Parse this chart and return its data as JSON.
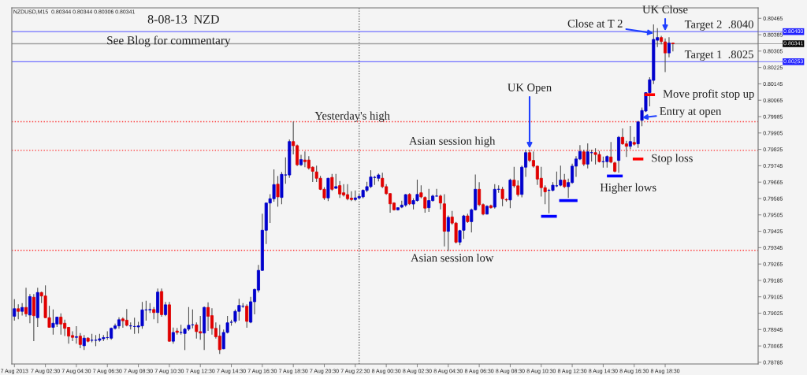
{
  "chart_data": {
    "type": "candlestick",
    "title": "8-08-13  NZD",
    "x": [
      "2013-08-07T00:30",
      "2013-08-07T00:45",
      "2013-08-07T01:00",
      "2013-08-07T01:15",
      "2013-08-07T01:30",
      "2013-08-07T01:45",
      "2013-08-07T02:00",
      "2013-08-07T02:15",
      "2013-08-07T02:30",
      "2013-08-07T02:45",
      "2013-08-07T03:00",
      "2013-08-07T03:15",
      "2013-08-07T03:30",
      "2013-08-07T03:45",
      "2013-08-07T04:00",
      "2013-08-07T04:15",
      "2013-08-07T04:30",
      "2013-08-07T04:45",
      "2013-08-07T05:00",
      "2013-08-07T05:15",
      "2013-08-07T05:30",
      "2013-08-07T05:45",
      "2013-08-07T06:00",
      "2013-08-07T06:15",
      "2013-08-07T06:30",
      "2013-08-07T06:45",
      "2013-08-07T07:00",
      "2013-08-07T07:15",
      "2013-08-07T07:30",
      "2013-08-07T07:45",
      "2013-08-07T08:00",
      "2013-08-07T08:15",
      "2013-08-07T08:30",
      "2013-08-07T08:45",
      "2013-08-07T09:00",
      "2013-08-07T09:15",
      "2013-08-07T09:30",
      "2013-08-07T09:45",
      "2013-08-07T10:00",
      "2013-08-07T10:15",
      "2013-08-07T10:30",
      "2013-08-07T10:45",
      "2013-08-07T11:00",
      "2013-08-07T11:15",
      "2013-08-07T11:30",
      "2013-08-07T11:45",
      "2013-08-07T12:00",
      "2013-08-07T12:15",
      "2013-08-07T12:30",
      "2013-08-07T12:45",
      "2013-08-07T13:00",
      "2013-08-07T13:15",
      "2013-08-07T13:30",
      "2013-08-07T13:45",
      "2013-08-07T14:00",
      "2013-08-07T14:15",
      "2013-08-07T14:30",
      "2013-08-07T14:45",
      "2013-08-07T15:00",
      "2013-08-07T15:15",
      "2013-08-07T15:30",
      "2013-08-07T15:45",
      "2013-08-07T16:00",
      "2013-08-07T16:15",
      "2013-08-07T16:30",
      "2013-08-07T16:45",
      "2013-08-07T17:00",
      "2013-08-07T17:15",
      "2013-08-07T17:30",
      "2013-08-07T17:45",
      "2013-08-07T18:00",
      "2013-08-07T18:15",
      "2013-08-07T18:30",
      "2013-08-07T18:45",
      "2013-08-07T19:00",
      "2013-08-07T19:15",
      "2013-08-07T19:30",
      "2013-08-07T19:45",
      "2013-08-07T20:00",
      "2013-08-07T20:15",
      "2013-08-07T20:30",
      "2013-08-07T20:45",
      "2013-08-07T21:00",
      "2013-08-07T21:15",
      "2013-08-07T21:30",
      "2013-08-07T21:45",
      "2013-08-07T22:00",
      "2013-08-07T22:15",
      "2013-08-07T22:30",
      "2013-08-07T22:45",
      "2013-08-07T23:00",
      "2013-08-07T23:15",
      "2013-08-07T23:30",
      "2013-08-07T23:45",
      "2013-08-08T00:00",
      "2013-08-08T00:15",
      "2013-08-08T00:30",
      "2013-08-08T00:45",
      "2013-08-08T01:00",
      "2013-08-08T01:15",
      "2013-08-08T01:30",
      "2013-08-08T01:45",
      "2013-08-08T02:00",
      "2013-08-08T02:15",
      "2013-08-08T02:30",
      "2013-08-08T02:45",
      "2013-08-08T03:00",
      "2013-08-08T03:15",
      "2013-08-08T03:30",
      "2013-08-08T03:45",
      "2013-08-08T04:00",
      "2013-08-08T04:15",
      "2013-08-08T04:30",
      "2013-08-08T04:45",
      "2013-08-08T05:00",
      "2013-08-08T05:15",
      "2013-08-08T05:30",
      "2013-08-08T05:45",
      "2013-08-08T06:00",
      "2013-08-08T06:15",
      "2013-08-08T06:30",
      "2013-08-08T06:45",
      "2013-08-08T07:00",
      "2013-08-08T07:15",
      "2013-08-08T07:30",
      "2013-08-08T07:45",
      "2013-08-08T08:00",
      "2013-08-08T08:15",
      "2013-08-08T08:30",
      "2013-08-08T08:45",
      "2013-08-08T09:00",
      "2013-08-08T09:15",
      "2013-08-08T09:30",
      "2013-08-08T09:45",
      "2013-08-08T10:00",
      "2013-08-08T10:15",
      "2013-08-08T10:30",
      "2013-08-08T10:45",
      "2013-08-08T11:00",
      "2013-08-08T11:15",
      "2013-08-08T11:30",
      "2013-08-08T11:45",
      "2013-08-08T12:00",
      "2013-08-08T12:15",
      "2013-08-08T12:30",
      "2013-08-08T12:45",
      "2013-08-08T13:00",
      "2013-08-08T13:15",
      "2013-08-08T13:30",
      "2013-08-08T13:45",
      "2013-08-08T14:00",
      "2013-08-08T14:15",
      "2013-08-08T14:30",
      "2013-08-08T14:45",
      "2013-08-08T15:00",
      "2013-08-08T15:15",
      "2013-08-08T15:30",
      "2013-08-08T15:45",
      "2013-08-08T16:00",
      "2013-08-08T16:15",
      "2013-08-08T16:30",
      "2013-08-08T16:45",
      "2013-08-08T17:00",
      "2013-08-08T17:15",
      "2013-08-08T17:30",
      "2013-08-08T17:45",
      "2013-08-08T18:00",
      "2013-08-08T18:15",
      "2013-08-08T18:30",
      "2013-08-08T18:45",
      "2013-08-08T19:00"
    ],
    "ohlc": [
      [
        0.7901,
        0.79091,
        0.78991,
        0.79047
      ],
      [
        0.79047,
        0.79066,
        0.78997,
        0.79034
      ],
      [
        0.79034,
        0.79072,
        0.79016,
        0.79053
      ],
      [
        0.79053,
        0.79147,
        0.7901,
        0.79022
      ],
      [
        0.79016,
        0.79116,
        0.78978,
        0.79106
      ],
      [
        0.79103,
        0.79116,
        0.78891,
        0.79013
      ],
      [
        0.79003,
        0.79147,
        0.7896,
        0.79126
      ],
      [
        0.79126,
        0.79128,
        0.79076,
        0.79109
      ],
      [
        0.79109,
        0.79159,
        0.79003,
        0.79003
      ],
      [
        0.79003,
        0.79059,
        0.78956,
        0.78956
      ],
      [
        0.78956,
        0.79041,
        0.78922,
        0.78976
      ],
      [
        0.78972,
        0.79006,
        0.7896,
        0.79006
      ],
      [
        0.79006,
        0.79022,
        0.78922,
        0.78972
      ],
      [
        0.78976,
        0.78991,
        0.78916,
        0.78951
      ],
      [
        0.78956,
        0.78956,
        0.78878,
        0.78913
      ],
      [
        0.78916,
        0.78935,
        0.78891,
        0.78907
      ],
      [
        0.78907,
        0.7896,
        0.78878,
        0.7891
      ],
      [
        0.78913,
        0.78926,
        0.78856,
        0.78872
      ],
      [
        0.78866,
        0.78916,
        0.78847,
        0.78903
      ],
      [
        0.78903,
        0.78906,
        0.78885,
        0.78888
      ],
      [
        0.78893,
        0.78922,
        0.78885,
        0.78893
      ],
      [
        0.78893,
        0.78916,
        0.78866,
        0.78893
      ],
      [
        0.78893,
        0.78922,
        0.78888,
        0.789
      ],
      [
        0.789,
        0.78916,
        0.78891,
        0.78906
      ],
      [
        0.78906,
        0.78935,
        0.78897,
        0.78906
      ],
      [
        0.78903,
        0.78953,
        0.78897,
        0.78951
      ],
      [
        0.78951,
        0.78972,
        0.78947,
        0.78963
      ],
      [
        0.78963,
        0.79003,
        0.78951,
        0.78993
      ],
      [
        0.78997,
        0.79003,
        0.78956,
        0.78988
      ],
      [
        0.78991,
        0.79043,
        0.78963,
        0.78966
      ],
      [
        0.78963,
        0.78978,
        0.78947,
        0.78963
      ],
      [
        0.7896,
        0.79001,
        0.78926,
        0.7896
      ],
      [
        0.78958,
        0.78981,
        0.78928,
        0.78963
      ],
      [
        0.78963,
        0.79078,
        0.78951,
        0.79041
      ],
      [
        0.79041,
        0.79084,
        0.78991,
        0.79041
      ],
      [
        0.79041,
        0.79072,
        0.79028,
        0.79043
      ],
      [
        0.79043,
        0.79053,
        0.78997,
        0.79028
      ],
      [
        0.79028,
        0.79143,
        0.78978,
        0.79128
      ],
      [
        0.79131,
        0.79143,
        0.7901,
        0.79018
      ],
      [
        0.79018,
        0.79078,
        0.79013,
        0.79066
      ],
      [
        0.79066,
        0.79078,
        0.78888,
        0.78888
      ],
      [
        0.78888,
        0.78953,
        0.78878,
        0.78931
      ],
      [
        0.78938,
        0.78951,
        0.78922,
        0.78931
      ],
      [
        0.78931,
        0.78966,
        0.78922,
        0.78931
      ],
      [
        0.78926,
        0.78951,
        0.78847,
        0.78947
      ],
      [
        0.78947,
        0.79053,
        0.78941,
        0.78966
      ],
      [
        0.78968,
        0.79041,
        0.78953,
        0.78968
      ],
      [
        0.78968,
        0.78978,
        0.78903,
        0.78935
      ],
      [
        0.78935,
        0.7901,
        0.78897,
        0.78928
      ],
      [
        0.78928,
        0.79056,
        0.78847,
        0.79053
      ],
      [
        0.79053,
        0.79076,
        0.78941,
        0.7901
      ],
      [
        0.79013,
        0.79047,
        0.78922,
        0.78951
      ],
      [
        0.78951,
        0.78978,
        0.78903,
        0.7891
      ],
      [
        0.78913,
        0.78966,
        0.78828,
        0.78847
      ],
      [
        0.78851,
        0.78943,
        0.78851,
        0.78931
      ],
      [
        0.78931,
        0.7901,
        0.78928,
        0.78978
      ],
      [
        0.78981,
        0.78991,
        0.78966,
        0.78981
      ],
      [
        0.78985,
        0.79041,
        0.78978,
        0.79034
      ],
      [
        0.79034,
        0.79093,
        0.78991,
        0.79063
      ],
      [
        0.79059,
        0.79072,
        0.79053,
        0.79059
      ],
      [
        0.79059,
        0.79066,
        0.78956,
        0.78985
      ],
      [
        0.78981,
        0.79103,
        0.78978,
        0.79081
      ],
      [
        0.79081,
        0.79143,
        0.79022,
        0.79141
      ],
      [
        0.79138,
        0.79259,
        0.79128,
        0.79234
      ],
      [
        0.79234,
        0.79509,
        0.79234,
        0.7943
      ],
      [
        0.7943,
        0.79563,
        0.79365,
        0.79563
      ],
      [
        0.79563,
        0.79604,
        0.79468,
        0.79584
      ],
      [
        0.79584,
        0.79725,
        0.79572,
        0.79653
      ],
      [
        0.79655,
        0.79693,
        0.79547,
        0.79593
      ],
      [
        0.7959,
        0.79713,
        0.79559,
        0.79703
      ],
      [
        0.797,
        0.79784,
        0.79659,
        0.797
      ],
      [
        0.797,
        0.79871,
        0.79688,
        0.79863
      ],
      [
        0.79863,
        0.79959,
        0.79803,
        0.79843
      ],
      [
        0.79843,
        0.79846,
        0.79746,
        0.7975
      ],
      [
        0.7975,
        0.79796,
        0.79746,
        0.79775
      ],
      [
        0.79773,
        0.79813,
        0.7974,
        0.79765
      ],
      [
        0.79773,
        0.7979,
        0.79728,
        0.79734
      ],
      [
        0.79738,
        0.7974,
        0.79668,
        0.79718
      ],
      [
        0.79715,
        0.79743,
        0.79668,
        0.79684
      ],
      [
        0.79684,
        0.79693,
        0.79628,
        0.7963
      ],
      [
        0.7963,
        0.79638,
        0.7958,
        0.79588
      ],
      [
        0.79588,
        0.79684,
        0.79575,
        0.79684
      ],
      [
        0.79688,
        0.79703,
        0.79625,
        0.7963
      ],
      [
        0.79635,
        0.79703,
        0.79634,
        0.79643
      ],
      [
        0.79648,
        0.79668,
        0.7959,
        0.79607
      ],
      [
        0.79613,
        0.79653,
        0.79597,
        0.79602
      ],
      [
        0.79604,
        0.79653,
        0.79578,
        0.79584
      ],
      [
        0.79587,
        0.79618,
        0.79575,
        0.7958
      ],
      [
        0.7958,
        0.79622,
        0.79575,
        0.79588
      ],
      [
        0.79588,
        0.79604,
        0.79584,
        0.79595
      ],
      [
        0.79593,
        0.79628,
        0.79588,
        0.79625
      ],
      [
        0.79625,
        0.79665,
        0.79618,
        0.79643
      ],
      [
        0.79643,
        0.79721,
        0.79638,
        0.7969
      ],
      [
        0.79688,
        0.79693,
        0.79653,
        0.79688
      ],
      [
        0.79684,
        0.79705,
        0.79671,
        0.797
      ],
      [
        0.79684,
        0.79709,
        0.79638,
        0.79643
      ],
      [
        0.79643,
        0.79653,
        0.79605,
        0.79609
      ],
      [
        0.79609,
        0.79609,
        0.79518,
        0.79559
      ],
      [
        0.79563,
        0.79565,
        0.79528,
        0.7953
      ],
      [
        0.7953,
        0.7954,
        0.79528,
        0.7954
      ],
      [
        0.79543,
        0.79572,
        0.7954,
        0.79553
      ],
      [
        0.79553,
        0.79605,
        0.79547,
        0.79604
      ],
      [
        0.79605,
        0.79609,
        0.79555,
        0.79559
      ],
      [
        0.79558,
        0.79584,
        0.79534,
        0.79575
      ],
      [
        0.79575,
        0.79675,
        0.79572,
        0.79605
      ],
      [
        0.79613,
        0.79647,
        0.79588,
        0.79593
      ],
      [
        0.7959,
        0.79593,
        0.79518,
        0.79538
      ],
      [
        0.7954,
        0.7963,
        0.79522,
        0.79575
      ],
      [
        0.79575,
        0.79602,
        0.79572,
        0.79597
      ],
      [
        0.79597,
        0.7963,
        0.79597,
        0.79597
      ],
      [
        0.79597,
        0.79602,
        0.79534,
        0.79563
      ],
      [
        0.79559,
        0.79604,
        0.79353,
        0.79425
      ],
      [
        0.79425,
        0.795,
        0.7933,
        0.79493
      ],
      [
        0.79495,
        0.79522,
        0.79459,
        0.79465
      ],
      [
        0.79465,
        0.79468,
        0.79368,
        0.79372
      ],
      [
        0.79372,
        0.7943,
        0.79359,
        0.79428
      ],
      [
        0.7943,
        0.79503,
        0.7939,
        0.795
      ],
      [
        0.795,
        0.79509,
        0.79468,
        0.79472
      ],
      [
        0.79472,
        0.79534,
        0.79422,
        0.7953
      ],
      [
        0.7953,
        0.797,
        0.79528,
        0.7963
      ],
      [
        0.7963,
        0.79663,
        0.7955,
        0.79555
      ],
      [
        0.79555,
        0.79559,
        0.79505,
        0.79509
      ],
      [
        0.79509,
        0.7955,
        0.79509,
        0.79547
      ],
      [
        0.7955,
        0.79553,
        0.79538,
        0.7954
      ],
      [
        0.79543,
        0.79653,
        0.79538,
        0.7963
      ],
      [
        0.7963,
        0.79647,
        0.79615,
        0.7963
      ],
      [
        0.7963,
        0.7964,
        0.7955,
        0.79584
      ],
      [
        0.7958,
        0.79584,
        0.79572,
        0.79578
      ],
      [
        0.79578,
        0.7968,
        0.7954,
        0.79675
      ],
      [
        0.79675,
        0.79738,
        0.7964,
        0.79647
      ],
      [
        0.79647,
        0.79671,
        0.79597,
        0.79604
      ],
      [
        0.79605,
        0.79743,
        0.79593,
        0.79738
      ],
      [
        0.79738,
        0.79821,
        0.79693,
        0.79809
      ],
      [
        0.79809,
        0.79821,
        0.79765,
        0.79771
      ],
      [
        0.79771,
        0.79813,
        0.79738,
        0.79743
      ],
      [
        0.79743,
        0.79743,
        0.79653,
        0.7968
      ],
      [
        0.79684,
        0.79738,
        0.79597,
        0.79638
      ],
      [
        0.79638,
        0.79647,
        0.79559,
        0.79618
      ],
      [
        0.79625,
        0.7963,
        0.79515,
        0.79625
      ],
      [
        0.79625,
        0.79663,
        0.79622,
        0.7965
      ],
      [
        0.79647,
        0.79715,
        0.79643,
        0.79647
      ],
      [
        0.7965,
        0.79743,
        0.79647,
        0.79675
      ],
      [
        0.79675,
        0.79703,
        0.79638,
        0.79643
      ],
      [
        0.79643,
        0.7968,
        0.7959,
        0.79663
      ],
      [
        0.79663,
        0.79753,
        0.79659,
        0.79743
      ],
      [
        0.79743,
        0.7979,
        0.79693,
        0.79778
      ],
      [
        0.79778,
        0.79843,
        0.79775,
        0.79815
      ],
      [
        0.79813,
        0.79821,
        0.79746,
        0.79753
      ],
      [
        0.79753,
        0.79852,
        0.79734,
        0.79813
      ],
      [
        0.79809,
        0.79821,
        0.79768,
        0.79809
      ],
      [
        0.79809,
        0.79828,
        0.79753,
        0.798
      ],
      [
        0.798,
        0.79815,
        0.79763,
        0.79765
      ],
      [
        0.79765,
        0.79788,
        0.79738,
        0.79765
      ],
      [
        0.79765,
        0.79793,
        0.79738,
        0.7979
      ],
      [
        0.79788,
        0.79859,
        0.79759,
        0.79763
      ],
      [
        0.79759,
        0.79763,
        0.79715,
        0.79718
      ],
      [
        0.79771,
        0.79888,
        0.79713,
        0.79884
      ],
      [
        0.79884,
        0.79925,
        0.7985,
        0.79852
      ],
      [
        0.79852,
        0.79865,
        0.7979,
        0.7984
      ],
      [
        0.7984,
        0.79937,
        0.79828,
        0.79863
      ],
      [
        0.79859,
        0.79884,
        0.79846,
        0.7985
      ],
      [
        0.79852,
        0.79962,
        0.79834,
        0.79959
      ],
      [
        0.79967,
        0.80027,
        0.7994,
        0.80015
      ],
      [
        0.80012,
        0.80102,
        0.80009,
        0.80102
      ],
      [
        0.80102,
        0.80175,
        0.80037,
        0.80165
      ],
      [
        0.80162,
        0.80433,
        0.80146,
        0.80362
      ],
      [
        0.80358,
        0.80415,
        0.80327,
        0.80371
      ],
      [
        0.80371,
        0.80377,
        0.8034,
        0.80352
      ],
      [
        0.8035,
        0.80365,
        0.80205,
        0.80296
      ],
      [
        0.80296,
        0.80371,
        0.80277,
        0.80344
      ],
      [
        0.80344,
        0.80344,
        0.80306,
        0.80341
      ]
    ],
    "colors": [
      "#0000cd",
      "#e00000",
      "#0000cd",
      "#e00000",
      "#0000cd",
      "#e00000",
      "#0000cd",
      "#e00000",
      "#e00000",
      "#e00000",
      "#0000cd",
      "#0000cd",
      "#e00000",
      "#e00000",
      "#e00000",
      "#e00000",
      "#0000cd",
      "#e00000",
      "#0000cd",
      "#e00000",
      "#0000cd",
      "#0000cd",
      "#0000cd",
      "#0000cd",
      "#0000cd",
      "#0000cd",
      "#0000cd",
      "#0000cd",
      "#e00000",
      "#e00000",
      "#0000cd",
      "#0000cd",
      "#0000cd",
      "#0000cd",
      "#0000cd",
      "#0000cd",
      "#e00000",
      "#0000cd",
      "#e00000",
      "#0000cd",
      "#e00000",
      "#0000cd",
      "#e00000",
      "#0000cd",
      "#0000cd",
      "#0000cd",
      "#0000cd",
      "#e00000",
      "#e00000",
      "#0000cd",
      "#e00000",
      "#e00000",
      "#e00000",
      "#e00000",
      "#0000cd",
      "#0000cd",
      "#0000cd",
      "#0000cd",
      "#0000cd",
      "#0000cd",
      "#e00000",
      "#0000cd",
      "#0000cd",
      "#0000cd",
      "#0000cd",
      "#0000cd",
      "#0000cd",
      "#0000cd",
      "#e00000",
      "#0000cd",
      "#0000cd",
      "#0000cd",
      "#e00000",
      "#e00000",
      "#0000cd",
      "#e00000",
      "#e00000",
      "#e00000",
      "#e00000",
      "#e00000",
      "#e00000",
      "#0000cd",
      "#e00000",
      "#0000cd",
      "#e00000",
      "#e00000",
      "#e00000",
      "#e00000",
      "#0000cd",
      "#0000cd",
      "#0000cd",
      "#0000cd",
      "#0000cd",
      "#0000cd",
      "#0000cd",
      "#e00000",
      "#e00000",
      "#e00000",
      "#e00000",
      "#0000cd",
      "#0000cd",
      "#0000cd",
      "#e00000",
      "#0000cd",
      "#0000cd",
      "#e00000",
      "#e00000",
      "#0000cd",
      "#0000cd",
      "#0000cd",
      "#e00000",
      "#e00000",
      "#0000cd",
      "#e00000",
      "#e00000",
      "#0000cd",
      "#0000cd",
      "#e00000",
      "#0000cd",
      "#0000cd",
      "#e00000",
      "#e00000",
      "#0000cd",
      "#e00000",
      "#0000cd",
      "#0000cd",
      "#e00000",
      "#e00000",
      "#0000cd",
      "#e00000",
      "#e00000",
      "#0000cd",
      "#0000cd",
      "#e00000",
      "#e00000",
      "#e00000",
      "#e00000",
      "#e00000",
      "#0000cd",
      "#0000cd",
      "#0000cd",
      "#0000cd",
      "#e00000",
      "#0000cd",
      "#0000cd",
      "#0000cd",
      "#0000cd",
      "#e00000",
      "#0000cd",
      "#0000cd",
      "#e00000",
      "#e00000",
      "#0000cd",
      "#0000cd",
      "#e00000",
      "#e00000",
      "#0000cd",
      "#e00000",
      "#e00000",
      "#0000cd",
      "#e00000",
      "#0000cd",
      "#0000cd",
      "#0000cd",
      "#0000cd",
      "#0000cd",
      "#0000cd",
      "#e00000",
      "#e00000",
      "#0000cd",
      "#e00000"
    ],
    "xlim": [
      "2013-08-07T00:20",
      "2013-08-09T00:30"
    ],
    "xticks": [
      {
        "value": "2013-08-07T00:30",
        "label": "7 Aug 2013"
      },
      {
        "value": "2013-08-07T02:30",
        "label": "7 Aug 02:30"
      },
      {
        "value": "2013-08-07T04:30",
        "label": "7 Aug 04:30"
      },
      {
        "value": "2013-08-07T06:30",
        "label": "7 Aug 06:30"
      },
      {
        "value": "2013-08-07T08:30",
        "label": "7 Aug 08:30"
      },
      {
        "value": "2013-08-07T10:30",
        "label": "7 Aug 10:30"
      },
      {
        "value": "2013-08-07T12:30",
        "label": "7 Aug 12:30"
      },
      {
        "value": "2013-08-07T14:30",
        "label": "7 Aug 14:30"
      },
      {
        "value": "2013-08-07T16:30",
        "label": "7 Aug 16:30"
      },
      {
        "value": "2013-08-07T18:30",
        "label": "7 Aug 18:30"
      },
      {
        "value": "2013-08-07T20:30",
        "label": "7 Aug 20:30"
      },
      {
        "value": "2013-08-07T22:30",
        "label": "7 Aug 22:30"
      },
      {
        "value": "2013-08-08T00:30",
        "label": "8 Aug 00:30"
      },
      {
        "value": "2013-08-08T02:30",
        "label": "8 Aug 02:30"
      },
      {
        "value": "2013-08-08T04:30",
        "label": "8 Aug 04:30"
      },
      {
        "value": "2013-08-08T06:30",
        "label": "8 Aug 06:30"
      },
      {
        "value": "2013-08-08T08:30",
        "label": "8 Aug 08:30"
      },
      {
        "value": "2013-08-08T10:30",
        "label": "8 Aug 10:30"
      },
      {
        "value": "2013-08-08T12:30",
        "label": "8 Aug 12:30"
      },
      {
        "value": "2013-08-08T14:30",
        "label": "8 Aug 14:30"
      },
      {
        "value": "2013-08-08T16:30",
        "label": "8 Aug 16:30"
      },
      {
        "value": "2013-08-08T18:30",
        "label": "8 Aug 18:30"
      }
    ],
    "ylim": [
      0.78777,
      0.80516
    ],
    "yticks": [
      0.80465,
      0.80385,
      0.80305,
      0.80225,
      0.80145,
      0.80065,
      0.79985,
      0.79905,
      0.79825,
      0.79745,
      0.79665,
      0.79585,
      0.79505,
      0.79425,
      0.79345,
      0.79265,
      0.79185,
      0.79105,
      0.79025,
      0.78945,
      0.78865,
      0.78785
    ],
    "ref_lines": [
      {
        "axis": "x",
        "value": "2013-08-07T22:45",
        "color": "#505050",
        "line_style": "dotted"
      },
      {
        "axis": "y",
        "value": 0.804,
        "label": "0.80400",
        "color": "#7070ff",
        "line_style": "solid"
      },
      {
        "axis": "y",
        "value": 0.80341,
        "label": "0.80341",
        "color": "#a0a0a0",
        "line_style": "solid"
      },
      {
        "axis": "y",
        "value": 0.80253,
        "label": "0.80253",
        "color": "#7070ff",
        "line_style": "solid"
      },
      {
        "axis": "y",
        "value": 0.7996,
        "color": "#ff3030",
        "line_style": "dotted"
      },
      {
        "axis": "y",
        "value": 0.7982,
        "color": "#ff3030",
        "line_style": "dotted"
      },
      {
        "axis": "y",
        "value": 0.79332,
        "color": "#ff3030",
        "line_style": "dotted"
      }
    ],
    "series": [
      {
        "type": "line",
        "x": [
          "2013-08-08T10:35",
          "2013-08-08T11:25"
        ],
        "values": [
          0.79498,
          0.79498
        ],
        "color": "#0000ff"
      },
      {
        "type": "line",
        "x": [
          "2013-08-08T11:45",
          "2013-08-08T12:45"
        ],
        "values": [
          0.79575,
          0.79575
        ],
        "color": "#0000ff"
      },
      {
        "type": "line",
        "x": [
          "2013-08-08T14:50",
          "2013-08-08T15:40"
        ],
        "values": [
          0.79695,
          0.79695
        ],
        "color": "#0000ff"
      },
      {
        "type": "line",
        "x": [
          "2013-08-08T16:30",
          "2013-08-08T17:00"
        ],
        "values": [
          0.79778,
          0.79778
        ],
        "color": "#ff0000"
      },
      {
        "type": "line",
        "x": [
          "2013-08-08T17:15",
          "2013-08-08T17:45"
        ],
        "values": [
          0.80092,
          0.80092
        ],
        "color": "#ff0000"
      }
    ],
    "annotations": [
      "NZDUSD,M15  0.80344 0.80344 0.80306 0.80341",
      "See Blog for commentary",
      {
        "text": "Yesterday's high",
        "x": "2013-08-07T18:30",
        "y": 0.79959
      },
      {
        "text": "Asian session high",
        "x": "2013-08-08T04:45",
        "y": 0.7982
      },
      {
        "text": "Asian session low",
        "x": "2013-08-08T04:45",
        "y": 0.79332
      },
      {
        "text": "UK Open",
        "x": "2013-08-08T09:45",
        "y": 0.7983
      },
      "Higher lows",
      {
        "text": "Stop loss",
        "x": "2013-08-08T16:45",
        "y": 0.79778
      },
      {
        "text": "Move profit stop up",
        "x": "2013-08-08T17:30",
        "y": 0.80092
      },
      {
        "text": "Entry at open",
        "x": "2013-08-08T17:00",
        "y": 0.7998
      },
      {
        "text": "Close at T 2",
        "x": "2013-08-08T17:45",
        "y": 0.80392
      },
      {
        "text": "UK Close",
        "x": "2013-08-08T18:30",
        "y": 0.80403
      },
      {
        "text": "Target 2  .8040",
        "x": "2013-08-09T00:30",
        "y": 0.804
      },
      {
        "text": "Target 1  .8025",
        "x": "2013-08-09T00:30",
        "y": 0.80253
      }
    ]
  }
}
